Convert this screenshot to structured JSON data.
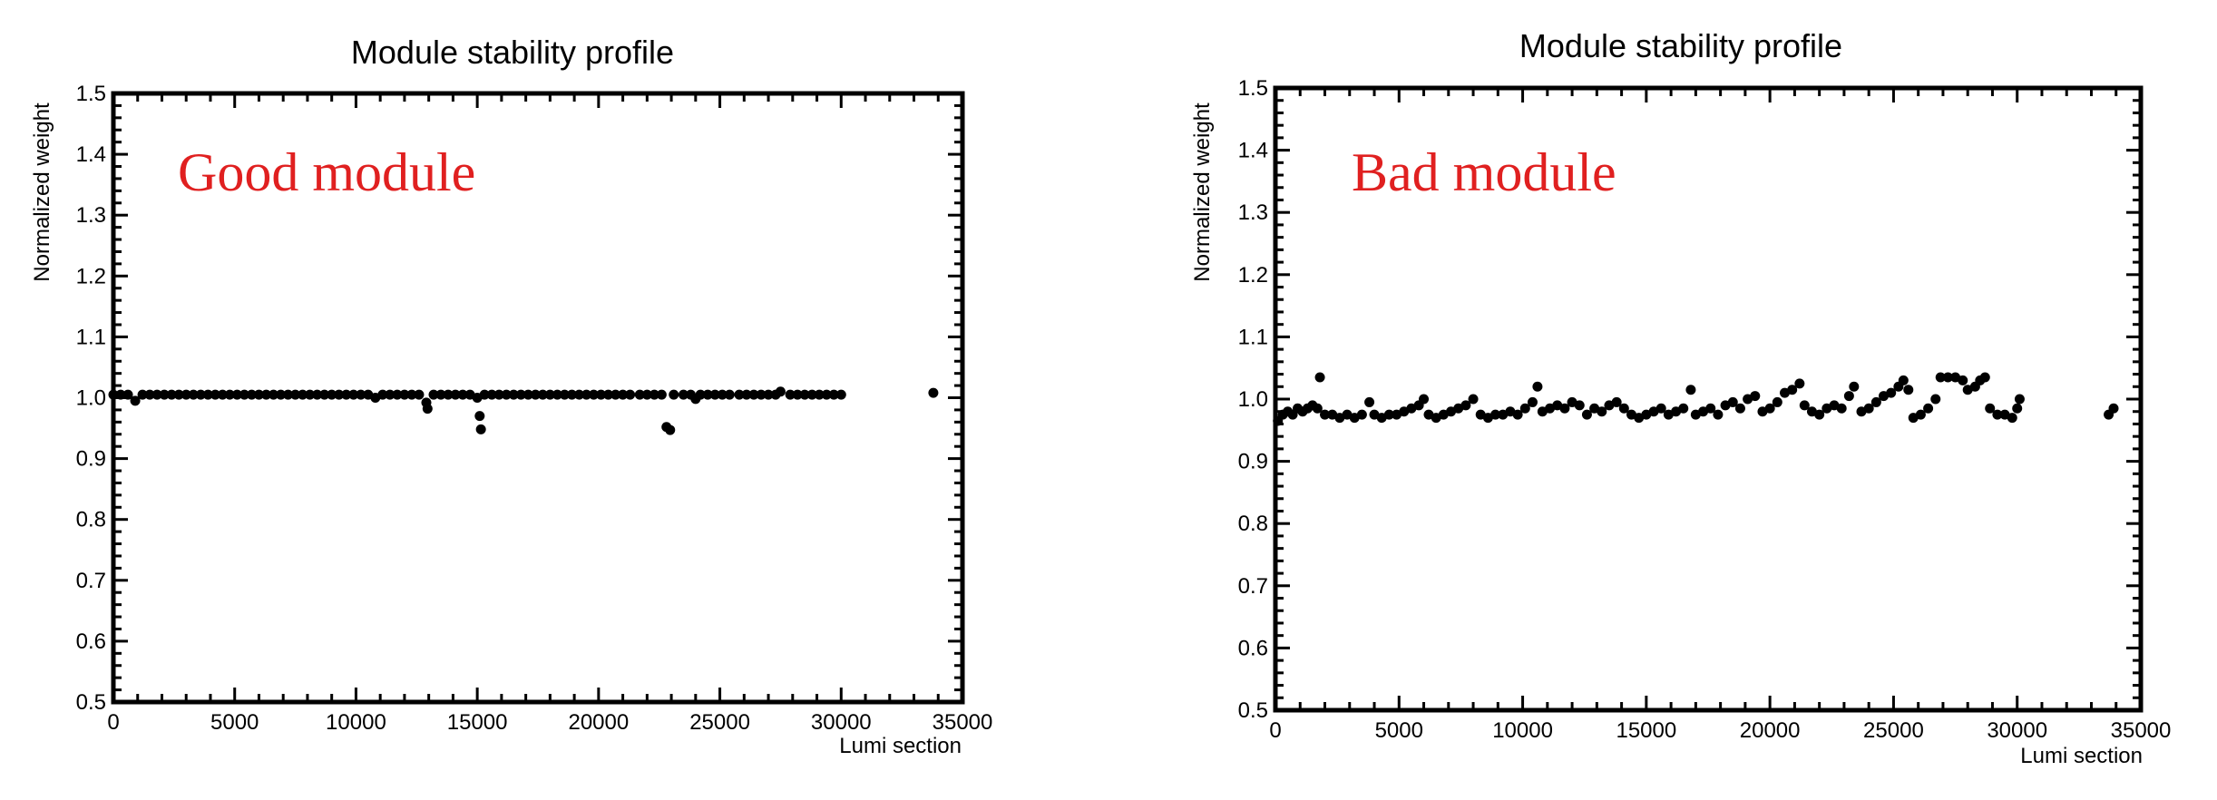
{
  "chart_data": [
    {
      "type": "scatter",
      "title": "Module stability profile",
      "xlabel": "Lumi section",
      "ylabel": "Normalized weight",
      "annotation": "Good module",
      "xlim": [
        0,
        35000
      ],
      "ylim": [
        0.5,
        1.5
      ],
      "xticks": [
        "0",
        "5000",
        "10000",
        "15000",
        "20000",
        "25000",
        "30000",
        "35000"
      ],
      "yticks": [
        "0.5",
        "0.6",
        "0.7",
        "0.8",
        "0.9",
        "1.0",
        "1.1",
        "1.2",
        "1.3",
        "1.4",
        "1.5"
      ],
      "grid": false,
      "points": [
        [
          0,
          1.005
        ],
        [
          300,
          1.005
        ],
        [
          600,
          1.005
        ],
        [
          900,
          0.995
        ],
        [
          1200,
          1.005
        ],
        [
          1500,
          1.005
        ],
        [
          1800,
          1.005
        ],
        [
          2100,
          1.005
        ],
        [
          2400,
          1.005
        ],
        [
          2700,
          1.005
        ],
        [
          3000,
          1.005
        ],
        [
          3300,
          1.005
        ],
        [
          3600,
          1.005
        ],
        [
          3900,
          1.005
        ],
        [
          4200,
          1.005
        ],
        [
          4500,
          1.005
        ],
        [
          4800,
          1.005
        ],
        [
          5100,
          1.005
        ],
        [
          5400,
          1.005
        ],
        [
          5700,
          1.005
        ],
        [
          6000,
          1.005
        ],
        [
          6300,
          1.005
        ],
        [
          6600,
          1.005
        ],
        [
          6900,
          1.005
        ],
        [
          7200,
          1.005
        ],
        [
          7500,
          1.005
        ],
        [
          7800,
          1.005
        ],
        [
          8100,
          1.005
        ],
        [
          8400,
          1.005
        ],
        [
          8700,
          1.005
        ],
        [
          9000,
          1.005
        ],
        [
          9300,
          1.005
        ],
        [
          9600,
          1.005
        ],
        [
          9900,
          1.005
        ],
        [
          10200,
          1.005
        ],
        [
          10500,
          1.005
        ],
        [
          10800,
          1.0
        ],
        [
          11100,
          1.005
        ],
        [
          11400,
          1.005
        ],
        [
          11700,
          1.005
        ],
        [
          12000,
          1.005
        ],
        [
          12300,
          1.005
        ],
        [
          12600,
          1.005
        ],
        [
          12900,
          0.992
        ],
        [
          12950,
          0.982
        ],
        [
          13200,
          1.005
        ],
        [
          13500,
          1.005
        ],
        [
          13800,
          1.005
        ],
        [
          14100,
          1.005
        ],
        [
          14400,
          1.005
        ],
        [
          14700,
          1.005
        ],
        [
          15000,
          1.0
        ],
        [
          15100,
          0.97
        ],
        [
          15150,
          0.948
        ],
        [
          15300,
          1.005
        ],
        [
          15600,
          1.005
        ],
        [
          15900,
          1.005
        ],
        [
          16200,
          1.005
        ],
        [
          16500,
          1.005
        ],
        [
          16800,
          1.005
        ],
        [
          17100,
          1.005
        ],
        [
          17400,
          1.005
        ],
        [
          17700,
          1.005
        ],
        [
          18000,
          1.005
        ],
        [
          18300,
          1.005
        ],
        [
          18600,
          1.005
        ],
        [
          18900,
          1.005
        ],
        [
          19200,
          1.005
        ],
        [
          19500,
          1.005
        ],
        [
          19800,
          1.005
        ],
        [
          20100,
          1.005
        ],
        [
          20400,
          1.005
        ],
        [
          20700,
          1.005
        ],
        [
          21000,
          1.005
        ],
        [
          21300,
          1.005
        ],
        [
          21700,
          1.005
        ],
        [
          22000,
          1.005
        ],
        [
          22300,
          1.005
        ],
        [
          22600,
          1.005
        ],
        [
          22800,
          0.952
        ],
        [
          22950,
          0.947
        ],
        [
          23100,
          1.005
        ],
        [
          23500,
          1.005
        ],
        [
          23800,
          1.005
        ],
        [
          24000,
          0.998
        ],
        [
          24200,
          1.005
        ],
        [
          24500,
          1.005
        ],
        [
          24800,
          1.005
        ],
        [
          25100,
          1.005
        ],
        [
          25400,
          1.005
        ],
        [
          25800,
          1.005
        ],
        [
          26100,
          1.005
        ],
        [
          26400,
          1.005
        ],
        [
          26700,
          1.005
        ],
        [
          27000,
          1.005
        ],
        [
          27300,
          1.005
        ],
        [
          27500,
          1.01
        ],
        [
          27900,
          1.005
        ],
        [
          28200,
          1.005
        ],
        [
          28500,
          1.005
        ],
        [
          28800,
          1.005
        ],
        [
          29100,
          1.005
        ],
        [
          29400,
          1.005
        ],
        [
          29700,
          1.005
        ],
        [
          30000,
          1.005
        ],
        [
          33800,
          1.008
        ]
      ]
    },
    {
      "type": "scatter",
      "title": "Module stability profile",
      "xlabel": "Lumi section",
      "ylabel": "Normalized weight",
      "annotation": "Bad module",
      "xlim": [
        0,
        35000
      ],
      "ylim": [
        0.5,
        1.5
      ],
      "xticks": [
        "0",
        "5000",
        "10000",
        "15000",
        "20000",
        "25000",
        "30000",
        "35000"
      ],
      "yticks": [
        "0.5",
        "0.6",
        "0.7",
        "0.8",
        "0.9",
        "1.0",
        "1.1",
        "1.2",
        "1.3",
        "1.4",
        "1.5"
      ],
      "grid": false,
      "points": [
        [
          100,
          0.965
        ],
        [
          300,
          0.975
        ],
        [
          500,
          0.98
        ],
        [
          700,
          0.975
        ],
        [
          900,
          0.985
        ],
        [
          1100,
          0.98
        ],
        [
          1300,
          0.985
        ],
        [
          1500,
          0.99
        ],
        [
          1700,
          0.985
        ],
        [
          1800,
          1.035
        ],
        [
          2000,
          0.975
        ],
        [
          2300,
          0.975
        ],
        [
          2600,
          0.97
        ],
        [
          2900,
          0.975
        ],
        [
          3200,
          0.97
        ],
        [
          3500,
          0.975
        ],
        [
          3800,
          0.995
        ],
        [
          4000,
          0.975
        ],
        [
          4300,
          0.97
        ],
        [
          4600,
          0.975
        ],
        [
          4900,
          0.975
        ],
        [
          5200,
          0.98
        ],
        [
          5500,
          0.985
        ],
        [
          5800,
          0.99
        ],
        [
          6000,
          1.0
        ],
        [
          6200,
          0.975
        ],
        [
          6500,
          0.97
        ],
        [
          6800,
          0.975
        ],
        [
          7100,
          0.98
        ],
        [
          7400,
          0.985
        ],
        [
          7700,
          0.99
        ],
        [
          8000,
          1.0
        ],
        [
          8300,
          0.975
        ],
        [
          8600,
          0.97
        ],
        [
          8900,
          0.975
        ],
        [
          9200,
          0.975
        ],
        [
          9500,
          0.98
        ],
        [
          9800,
          0.975
        ],
        [
          10100,
          0.985
        ],
        [
          10400,
          0.995
        ],
        [
          10600,
          1.02
        ],
        [
          10800,
          0.98
        ],
        [
          11100,
          0.985
        ],
        [
          11400,
          0.99
        ],
        [
          11700,
          0.985
        ],
        [
          12000,
          0.995
        ],
        [
          12300,
          0.99
        ],
        [
          12600,
          0.975
        ],
        [
          12900,
          0.985
        ],
        [
          13200,
          0.98
        ],
        [
          13500,
          0.99
        ],
        [
          13800,
          0.995
        ],
        [
          14100,
          0.985
        ],
        [
          14400,
          0.975
        ],
        [
          14700,
          0.97
        ],
        [
          15000,
          0.975
        ],
        [
          15300,
          0.98
        ],
        [
          15600,
          0.985
        ],
        [
          15900,
          0.975
        ],
        [
          16200,
          0.98
        ],
        [
          16500,
          0.985
        ],
        [
          16800,
          1.015
        ],
        [
          17000,
          0.975
        ],
        [
          17300,
          0.98
        ],
        [
          17600,
          0.985
        ],
        [
          17900,
          0.975
        ],
        [
          18200,
          0.99
        ],
        [
          18500,
          0.995
        ],
        [
          18800,
          0.985
        ],
        [
          19100,
          1.0
        ],
        [
          19400,
          1.005
        ],
        [
          19700,
          0.98
        ],
        [
          20000,
          0.985
        ],
        [
          20300,
          0.995
        ],
        [
          20600,
          1.01
        ],
        [
          20900,
          1.015
        ],
        [
          21200,
          1.025
        ],
        [
          21400,
          0.99
        ],
        [
          21700,
          0.98
        ],
        [
          22000,
          0.975
        ],
        [
          22300,
          0.985
        ],
        [
          22600,
          0.99
        ],
        [
          22900,
          0.985
        ],
        [
          23200,
          1.005
        ],
        [
          23400,
          1.02
        ],
        [
          23700,
          0.98
        ],
        [
          24000,
          0.985
        ],
        [
          24300,
          0.995
        ],
        [
          24600,
          1.005
        ],
        [
          24900,
          1.01
        ],
        [
          25200,
          1.02
        ],
        [
          25400,
          1.03
        ],
        [
          25600,
          1.015
        ],
        [
          25800,
          0.97
        ],
        [
          26100,
          0.975
        ],
        [
          26400,
          0.985
        ],
        [
          26700,
          1.0
        ],
        [
          26900,
          1.035
        ],
        [
          27200,
          1.035
        ],
        [
          27500,
          1.035
        ],
        [
          27800,
          1.03
        ],
        [
          28000,
          1.015
        ],
        [
          28300,
          1.02
        ],
        [
          28500,
          1.03
        ],
        [
          28700,
          1.035
        ],
        [
          28900,
          0.985
        ],
        [
          29200,
          0.975
        ],
        [
          29500,
          0.975
        ],
        [
          29800,
          0.97
        ],
        [
          30000,
          0.985
        ],
        [
          30100,
          1.0
        ],
        [
          33700,
          0.975
        ],
        [
          33900,
          0.985
        ]
      ]
    }
  ]
}
